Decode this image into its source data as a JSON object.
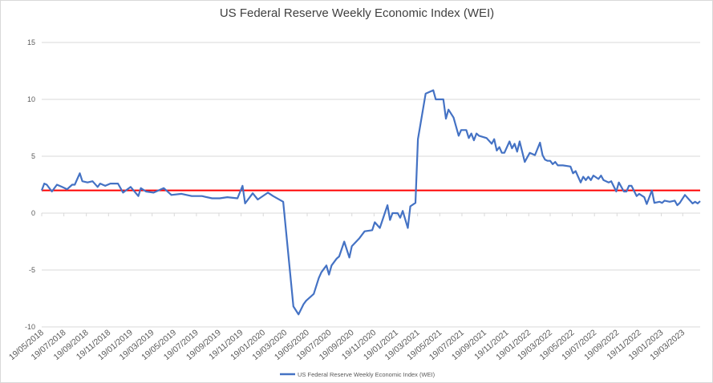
{
  "chart_data": {
    "type": "line",
    "title": "US Federal Reserve Weekly Economic Index (WEI)",
    "xlabel": "",
    "ylabel": "",
    "x_units": "weeks since 19/05/2018",
    "xlim": [
      0,
      259
    ],
    "ylim": [
      -10,
      15
    ],
    "yticks": [
      15,
      10,
      5,
      0,
      -5,
      -10
    ],
    "xtick_labels": [
      "19/05/2018",
      "19/07/2018",
      "19/09/2018",
      "19/11/2018",
      "19/01/2019",
      "19/03/2019",
      "19/05/2019",
      "19/07/2019",
      "19/09/2019",
      "19/11/2019",
      "19/01/2020",
      "19/03/2020",
      "19/05/2020",
      "19/07/2020",
      "19/09/2020",
      "19/11/2020",
      "19/01/2021",
      "19/03/2021",
      "19/05/2021",
      "19/07/2021",
      "19/09/2021",
      "19/11/2021",
      "19/01/2022",
      "19/03/2022",
      "19/05/2022",
      "19/07/2022",
      "19/09/2022",
      "19/11/2022",
      "19/01/2023",
      "19/03/2023"
    ],
    "grid": "horizontal",
    "legend_position": "bottom",
    "series": [
      {
        "name": "US Federal Reserve Weekly Economic Index (WEI)",
        "color": "#4472C4",
        "points": [
          [
            0,
            2.0
          ],
          [
            1,
            2.6
          ],
          [
            2,
            2.5
          ],
          [
            4,
            1.9
          ],
          [
            6,
            2.5
          ],
          [
            8,
            2.3
          ],
          [
            10,
            2.1
          ],
          [
            12,
            2.5
          ],
          [
            13,
            2.5
          ],
          [
            15,
            3.5
          ],
          [
            16,
            2.8
          ],
          [
            18,
            2.7
          ],
          [
            20,
            2.8
          ],
          [
            22,
            2.3
          ],
          [
            23,
            2.6
          ],
          [
            25,
            2.4
          ],
          [
            27,
            2.6
          ],
          [
            29,
            2.6
          ],
          [
            30,
            2.6
          ],
          [
            32,
            1.8
          ],
          [
            35,
            2.3
          ],
          [
            38,
            1.5
          ],
          [
            39,
            2.2
          ],
          [
            41,
            1.9
          ],
          [
            44,
            1.8
          ],
          [
            48,
            2.2
          ],
          [
            51,
            1.6
          ],
          [
            55,
            1.7
          ],
          [
            59,
            1.5
          ],
          [
            63,
            1.5
          ],
          [
            67,
            1.3
          ],
          [
            70,
            1.3
          ],
          [
            73,
            1.4
          ],
          [
            77,
            1.3
          ],
          [
            79,
            2.4
          ],
          [
            80,
            0.85
          ],
          [
            83,
            1.75
          ],
          [
            85,
            1.2
          ],
          [
            89,
            1.8
          ],
          [
            91,
            1.5
          ],
          [
            95,
            1.0
          ],
          [
            99,
            -8.2
          ],
          [
            101,
            -8.9
          ],
          [
            103,
            -8.0
          ],
          [
            104,
            -7.7
          ],
          [
            107,
            -7.1
          ],
          [
            109,
            -5.7
          ],
          [
            110,
            -5.2
          ],
          [
            112,
            -4.6
          ],
          [
            113,
            -5.4
          ],
          [
            114,
            -4.6
          ],
          [
            116,
            -4.0
          ],
          [
            117,
            -3.8
          ],
          [
            119,
            -2.5
          ],
          [
            121,
            -3.9
          ],
          [
            122,
            -2.9
          ],
          [
            125,
            -2.2
          ],
          [
            127,
            -1.6
          ],
          [
            130,
            -1.5
          ],
          [
            131,
            -0.8
          ],
          [
            133,
            -1.3
          ],
          [
            136,
            0.7
          ],
          [
            137,
            -0.6
          ],
          [
            138,
            0.0
          ],
          [
            140,
            0.0
          ],
          [
            141,
            -0.4
          ],
          [
            142,
            0.2
          ],
          [
            144,
            -1.3
          ],
          [
            145,
            0.6
          ],
          [
            147,
            0.9
          ],
          [
            148,
            6.5
          ],
          [
            151,
            10.5
          ],
          [
            154,
            10.8
          ],
          [
            155,
            10.0
          ],
          [
            158,
            10.0
          ],
          [
            159,
            8.3
          ],
          [
            160,
            9.1
          ],
          [
            162,
            8.4
          ],
          [
            164,
            6.8
          ],
          [
            165,
            7.3
          ],
          [
            167,
            7.3
          ],
          [
            168,
            6.6
          ],
          [
            169,
            7.0
          ],
          [
            170,
            6.4
          ],
          [
            171,
            7.0
          ],
          [
            172,
            6.8
          ],
          [
            175,
            6.6
          ],
          [
            177,
            6.1
          ],
          [
            178,
            6.5
          ],
          [
            179,
            5.5
          ],
          [
            180,
            5.8
          ],
          [
            181,
            5.3
          ],
          [
            182,
            5.3
          ],
          [
            184,
            6.3
          ],
          [
            185,
            5.7
          ],
          [
            186,
            6.1
          ],
          [
            187,
            5.4
          ],
          [
            188,
            6.3
          ],
          [
            190,
            4.5
          ],
          [
            191,
            4.9
          ],
          [
            192,
            5.3
          ],
          [
            194,
            5.1
          ],
          [
            196,
            6.2
          ],
          [
            197,
            5.1
          ],
          [
            198,
            4.7
          ],
          [
            199,
            4.6
          ],
          [
            200,
            4.6
          ],
          [
            201,
            4.3
          ],
          [
            202,
            4.5
          ],
          [
            203,
            4.2
          ],
          [
            205,
            4.2
          ],
          [
            208,
            4.1
          ],
          [
            209,
            3.5
          ],
          [
            210,
            3.7
          ],
          [
            212,
            2.7
          ],
          [
            213,
            3.2
          ],
          [
            214,
            2.9
          ],
          [
            215,
            3.2
          ],
          [
            216,
            2.9
          ],
          [
            217,
            3.3
          ],
          [
            219,
            3.0
          ],
          [
            220,
            3.3
          ],
          [
            221,
            2.9
          ],
          [
            223,
            2.7
          ],
          [
            224,
            2.8
          ],
          [
            226,
            1.9
          ],
          [
            227,
            2.7
          ],
          [
            229,
            1.9
          ],
          [
            230,
            1.9
          ],
          [
            231,
            2.4
          ],
          [
            232,
            2.4
          ],
          [
            234,
            1.5
          ],
          [
            235,
            1.7
          ],
          [
            237,
            1.4
          ],
          [
            238,
            0.8
          ],
          [
            240,
            2.0
          ],
          [
            241,
            0.9
          ],
          [
            243,
            1.0
          ],
          [
            244,
            0.9
          ],
          [
            245,
            1.1
          ],
          [
            247,
            1.0
          ],
          [
            249,
            1.1
          ],
          [
            250,
            0.7
          ],
          [
            251,
            0.9
          ],
          [
            253,
            1.6
          ],
          [
            256,
            0.85
          ],
          [
            257,
            1.0
          ],
          [
            258,
            0.85
          ],
          [
            259,
            1.05
          ]
        ]
      }
    ],
    "reference_line": {
      "value": 2,
      "color": "#FF0000"
    }
  }
}
